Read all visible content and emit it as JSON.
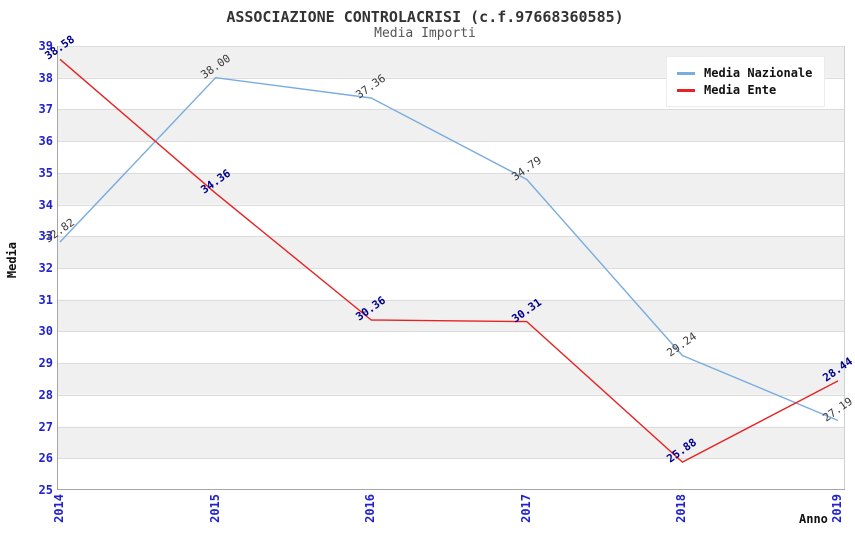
{
  "header": {
    "title": "ASSOCIAZIONE CONTROLACRISI (c.f.97668360585)",
    "subtitle": "Media Importi"
  },
  "chart_data": {
    "type": "line",
    "x": [
      "2014",
      "2015",
      "2016",
      "2017",
      "2018",
      "2019"
    ],
    "series": [
      {
        "name": "Media Nazionale",
        "color": "#79ACDF",
        "label_color": "#3a3a3a",
        "label_weight": "400",
        "values": [
          32.82,
          38.0,
          37.36,
          34.79,
          29.24,
          27.19
        ]
      },
      {
        "name": "Media Ente",
        "color": "#E62222",
        "label_color": "#00008B",
        "label_weight": "700",
        "values": [
          38.58,
          34.36,
          30.36,
          30.31,
          25.88,
          28.44
        ]
      }
    ],
    "xlabel": "Anno",
    "ylabel": "Media",
    "ylim": [
      25,
      39
    ],
    "ytick_step": 1,
    "grid": true,
    "legend_position": "top-right",
    "band_color": "#F0F0F0",
    "grid_color": "#DCDCDC",
    "axis_border_color": "#A6A6A6",
    "right_border_color": "#D0D0D0",
    "tick_color": "#2222CC"
  }
}
